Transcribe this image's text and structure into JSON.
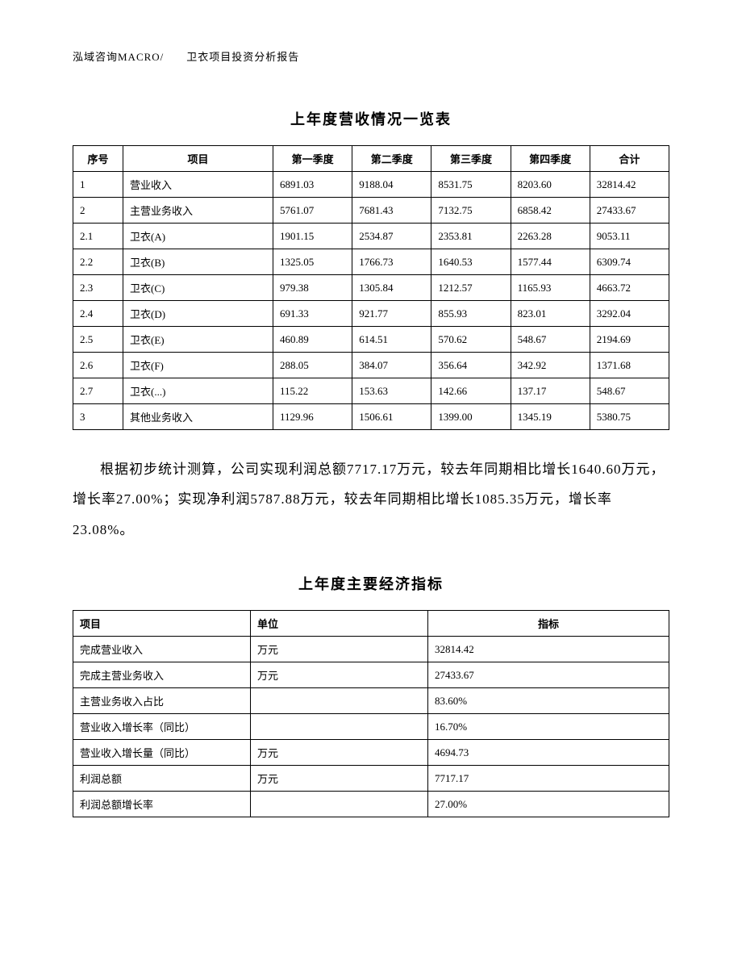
{
  "header": "泓域咨询MACRO/　　卫衣项目投资分析报告",
  "table1": {
    "title": "上年度营收情况一览表",
    "columns": [
      "序号",
      "项目",
      "第一季度",
      "第二季度",
      "第三季度",
      "第四季度",
      "合计"
    ],
    "rows": [
      [
        "1",
        "营业收入",
        "6891.03",
        "9188.04",
        "8531.75",
        "8203.60",
        "32814.42"
      ],
      [
        "2",
        "主营业务收入",
        "5761.07",
        "7681.43",
        "7132.75",
        "6858.42",
        "27433.67"
      ],
      [
        "2.1",
        "卫衣(A)",
        "1901.15",
        "2534.87",
        "2353.81",
        "2263.28",
        "9053.11"
      ],
      [
        "2.2",
        "卫衣(B)",
        "1325.05",
        "1766.73",
        "1640.53",
        "1577.44",
        "6309.74"
      ],
      [
        "2.3",
        "卫衣(C)",
        "979.38",
        "1305.84",
        "1212.57",
        "1165.93",
        "4663.72"
      ],
      [
        "2.4",
        "卫衣(D)",
        "691.33",
        "921.77",
        "855.93",
        "823.01",
        "3292.04"
      ],
      [
        "2.5",
        "卫衣(E)",
        "460.89",
        "614.51",
        "570.62",
        "548.67",
        "2194.69"
      ],
      [
        "2.6",
        "卫衣(F)",
        "288.05",
        "384.07",
        "356.64",
        "342.92",
        "1371.68"
      ],
      [
        "2.7",
        "卫衣(...)",
        "115.22",
        "153.63",
        "142.66",
        "137.17",
        "548.67"
      ],
      [
        "3",
        "其他业务收入",
        "1129.96",
        "1506.61",
        "1399.00",
        "1345.19",
        "5380.75"
      ]
    ]
  },
  "paragraph": "根据初步统计测算，公司实现利润总额7717.17万元，较去年同期相比增长1640.60万元，增长率27.00%；实现净利润5787.88万元，较去年同期相比增长1085.35万元，增长率23.08%。",
  "table2": {
    "title": "上年度主要经济指标",
    "columns": [
      "项目",
      "单位",
      "指标"
    ],
    "rows": [
      [
        "完成营业收入",
        "万元",
        "32814.42"
      ],
      [
        "完成主营业务收入",
        "万元",
        "27433.67"
      ],
      [
        "主营业务收入占比",
        "",
        "83.60%"
      ],
      [
        "营业收入增长率（同比）",
        "",
        "16.70%"
      ],
      [
        "营业收入增长量（同比）",
        "万元",
        "4694.73"
      ],
      [
        "利润总额",
        "万元",
        "7717.17"
      ],
      [
        "利润总额增长率",
        "",
        "27.00%"
      ]
    ]
  }
}
